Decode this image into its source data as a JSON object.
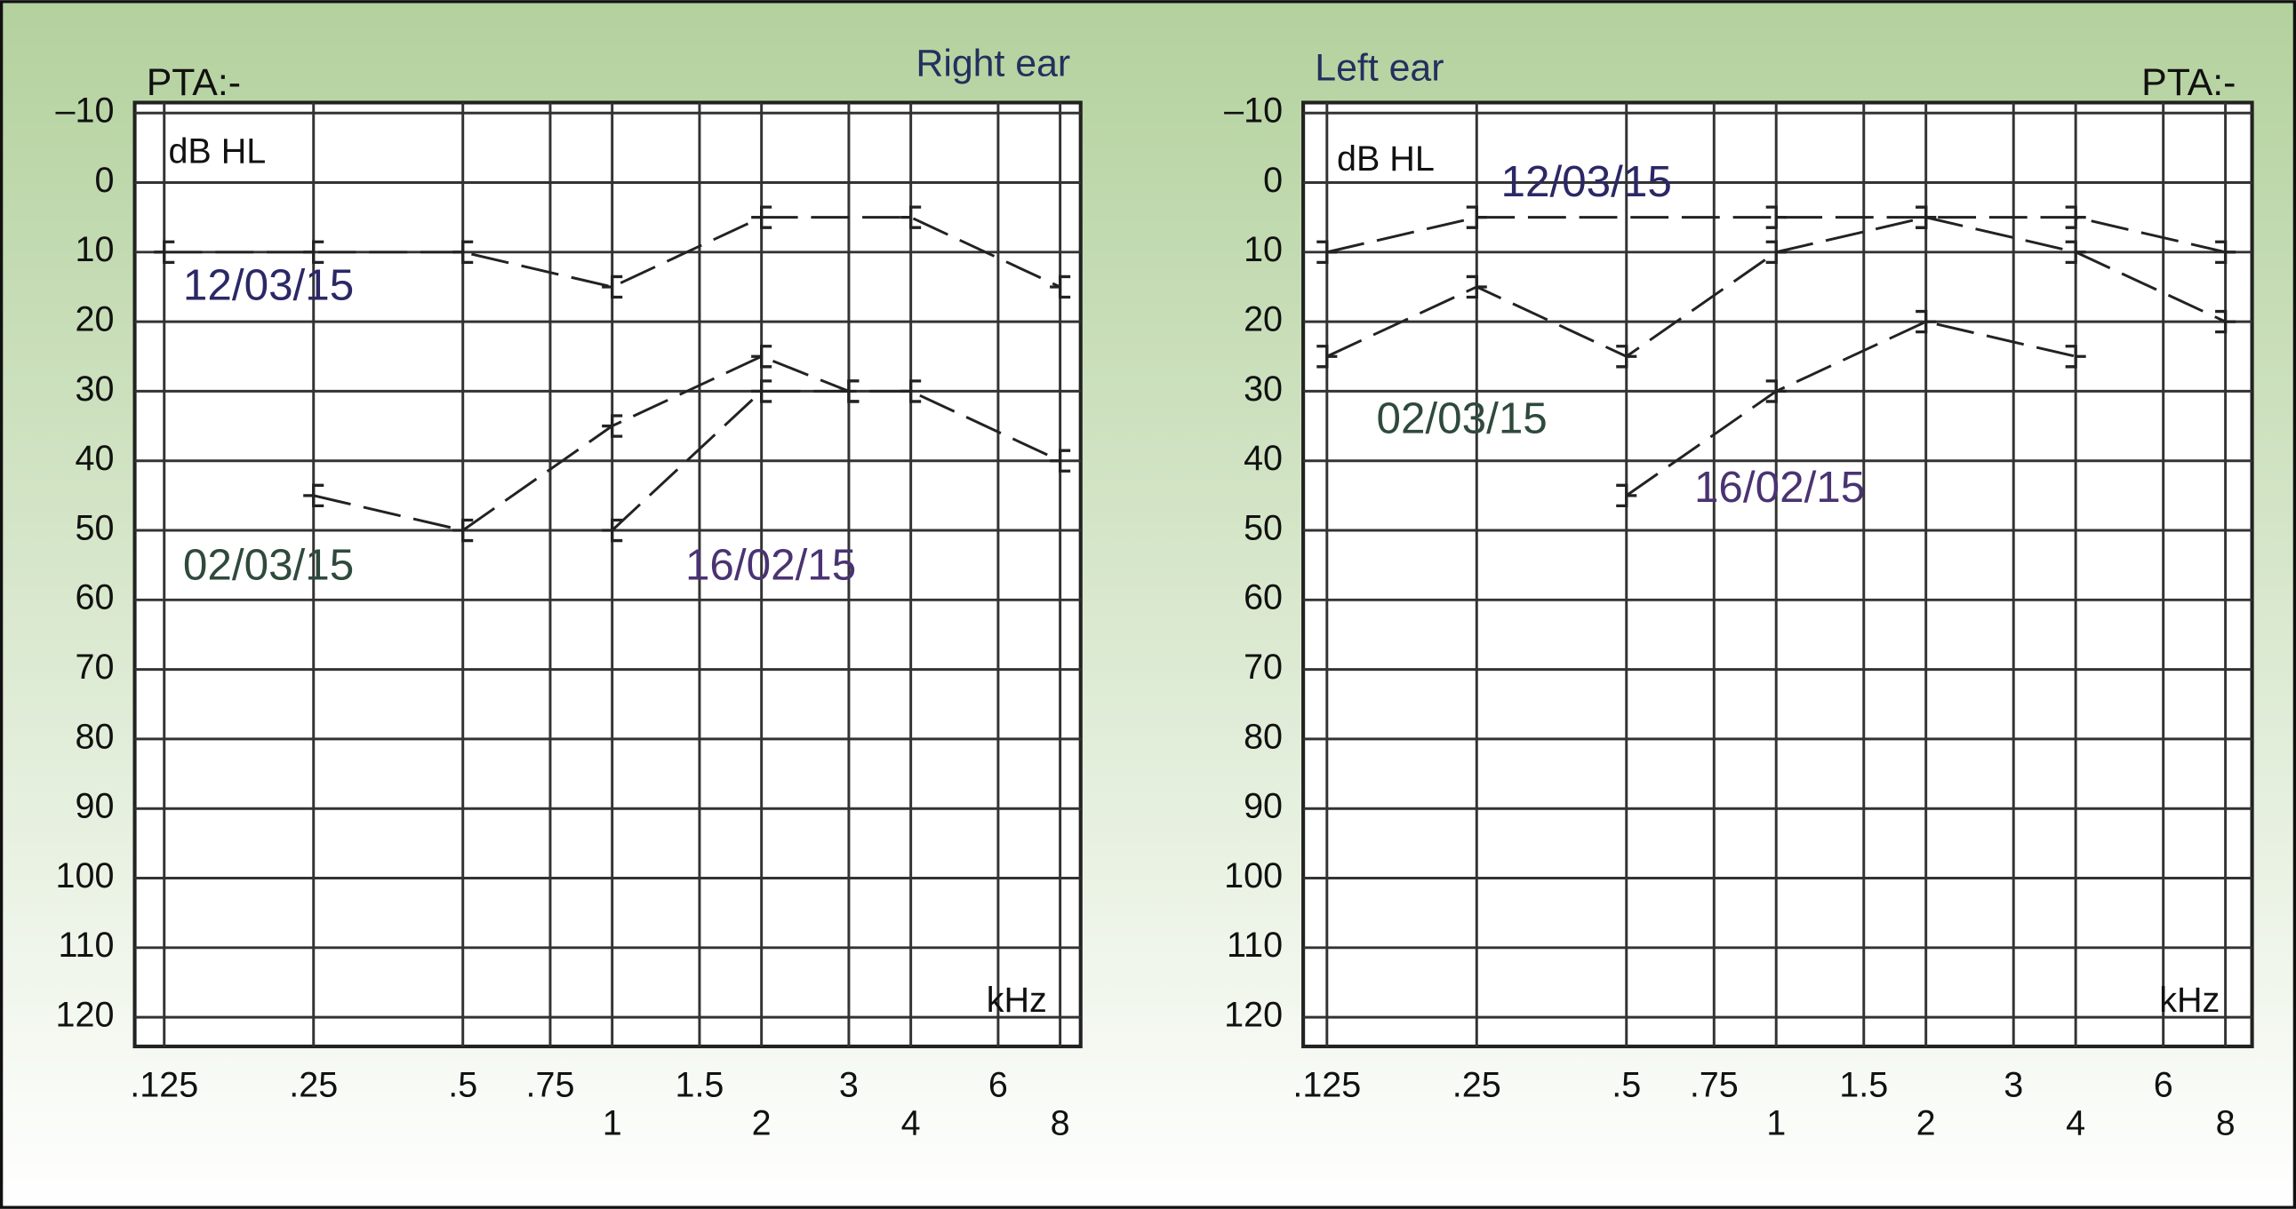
{
  "chart_data": [
    {
      "type": "line",
      "title": "Right ear",
      "annotation": "PTA:-",
      "y_label": "dB HL",
      "x_label": "kHz",
      "xscale": "log",
      "xlim": [
        0.109,
        8.8
      ],
      "ylim": [
        -11.5,
        124.2
      ],
      "y_inverted": true,
      "grid": true,
      "marker_side": "left",
      "xticks": [
        {
          "value": 0.125,
          "label": ".125"
        },
        {
          "value": 0.25,
          "label": ".25"
        },
        {
          "value": 0.5,
          "label": ".5"
        },
        {
          "value": 0.75,
          "label": ".75"
        },
        1,
        1.5,
        2,
        3,
        4,
        6,
        8
      ],
      "yticks": [
        {
          "value": -10,
          "label": "–10"
        },
        0,
        10,
        20,
        30,
        40,
        50,
        60,
        70,
        80,
        90,
        100,
        110,
        120
      ],
      "series": [
        {
          "name": "12/03/15",
          "color": "#2b2866",
          "x": [
            0.125,
            0.25,
            0.5,
            1,
            2,
            4,
            8
          ],
          "values": [
            10,
            10,
            10,
            15,
            5,
            5,
            15
          ]
        },
        {
          "name": "02/03/15",
          "color": "#2e4a3c",
          "x": [
            0.25,
            0.5,
            1,
            2,
            3,
            4,
            8
          ],
          "values": [
            45,
            50,
            35,
            25,
            30,
            30,
            40
          ]
        },
        {
          "name": "16/02/15",
          "color": "#4a3372",
          "x": [
            1,
            2,
            3
          ],
          "values": [
            50,
            30,
            30
          ]
        }
      ]
    },
    {
      "type": "line",
      "title": "Left ear",
      "annotation": "PTA:-",
      "y_label": "dB HL",
      "x_label": "kHz",
      "xscale": "log",
      "xlim": [
        0.112,
        9.05
      ],
      "ylim": [
        -11.5,
        124.2
      ],
      "y_inverted": true,
      "grid": true,
      "marker_side": "right",
      "xticks": [
        {
          "value": 0.125,
          "label": ".125"
        },
        {
          "value": 0.25,
          "label": ".25"
        },
        {
          "value": 0.5,
          "label": ".5"
        },
        {
          "value": 0.75,
          "label": ".75"
        },
        1,
        1.5,
        2,
        3,
        4,
        6,
        8
      ],
      "yticks": [
        {
          "value": -10,
          "label": "–10"
        },
        0,
        10,
        20,
        30,
        40,
        50,
        60,
        70,
        80,
        90,
        100,
        110,
        120
      ],
      "series": [
        {
          "name": "12/03/15",
          "color": "#2b2866",
          "x": [
            0.125,
            0.25,
            1,
            2,
            4,
            8
          ],
          "values": [
            10,
            5,
            5,
            5,
            5,
            10
          ]
        },
        {
          "name": "02/03/15",
          "color": "#2e4a3c",
          "x": [
            0.125,
            0.25,
            0.5,
            1,
            2,
            4,
            8
          ],
          "values": [
            25,
            15,
            25,
            10,
            5,
            10,
            20
          ]
        },
        {
          "name": "16/02/15",
          "color": "#4a3372",
          "x": [
            0.5,
            1,
            2,
            4
          ],
          "values": [
            45,
            30,
            20,
            25
          ]
        }
      ]
    }
  ]
}
